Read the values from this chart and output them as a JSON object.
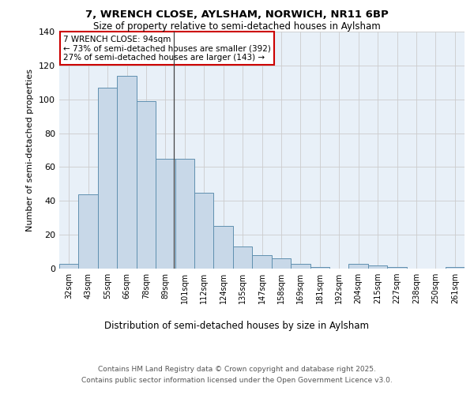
{
  "title1": "7, WRENCH CLOSE, AYLSHAM, NORWICH, NR11 6BP",
  "title2": "Size of property relative to semi-detached houses in Aylsham",
  "xlabel": "Distribution of semi-detached houses by size in Aylsham",
  "ylabel": "Number of semi-detached properties",
  "categories": [
    "32sqm",
    "43sqm",
    "55sqm",
    "66sqm",
    "78sqm",
    "89sqm",
    "101sqm",
    "112sqm",
    "124sqm",
    "135sqm",
    "147sqm",
    "158sqm",
    "169sqm",
    "181sqm",
    "192sqm",
    "204sqm",
    "215sqm",
    "227sqm",
    "238sqm",
    "250sqm",
    "261sqm"
  ],
  "values": [
    3,
    44,
    107,
    114,
    99,
    65,
    65,
    45,
    25,
    13,
    8,
    6,
    3,
    1,
    0,
    3,
    2,
    1,
    0,
    0,
    1
  ],
  "bar_color": "#c8d8e8",
  "bar_edge_color": "#6090b0",
  "subject_label": "7 WRENCH CLOSE: 94sqm",
  "smaller_pct": "73%",
  "smaller_count": 392,
  "larger_pct": "27%",
  "larger_count": 143,
  "subject_bin_index": 5,
  "annotation_box_color": "#ffffff",
  "annotation_box_edge": "#cc0000",
  "grid_color": "#cccccc",
  "background_color": "#e8f0f8",
  "ylim": [
    0,
    140
  ],
  "yticks": [
    0,
    20,
    40,
    60,
    80,
    100,
    120,
    140
  ],
  "footer1": "Contains HM Land Registry data © Crown copyright and database right 2025.",
  "footer2": "Contains public sector information licensed under the Open Government Licence v3.0."
}
